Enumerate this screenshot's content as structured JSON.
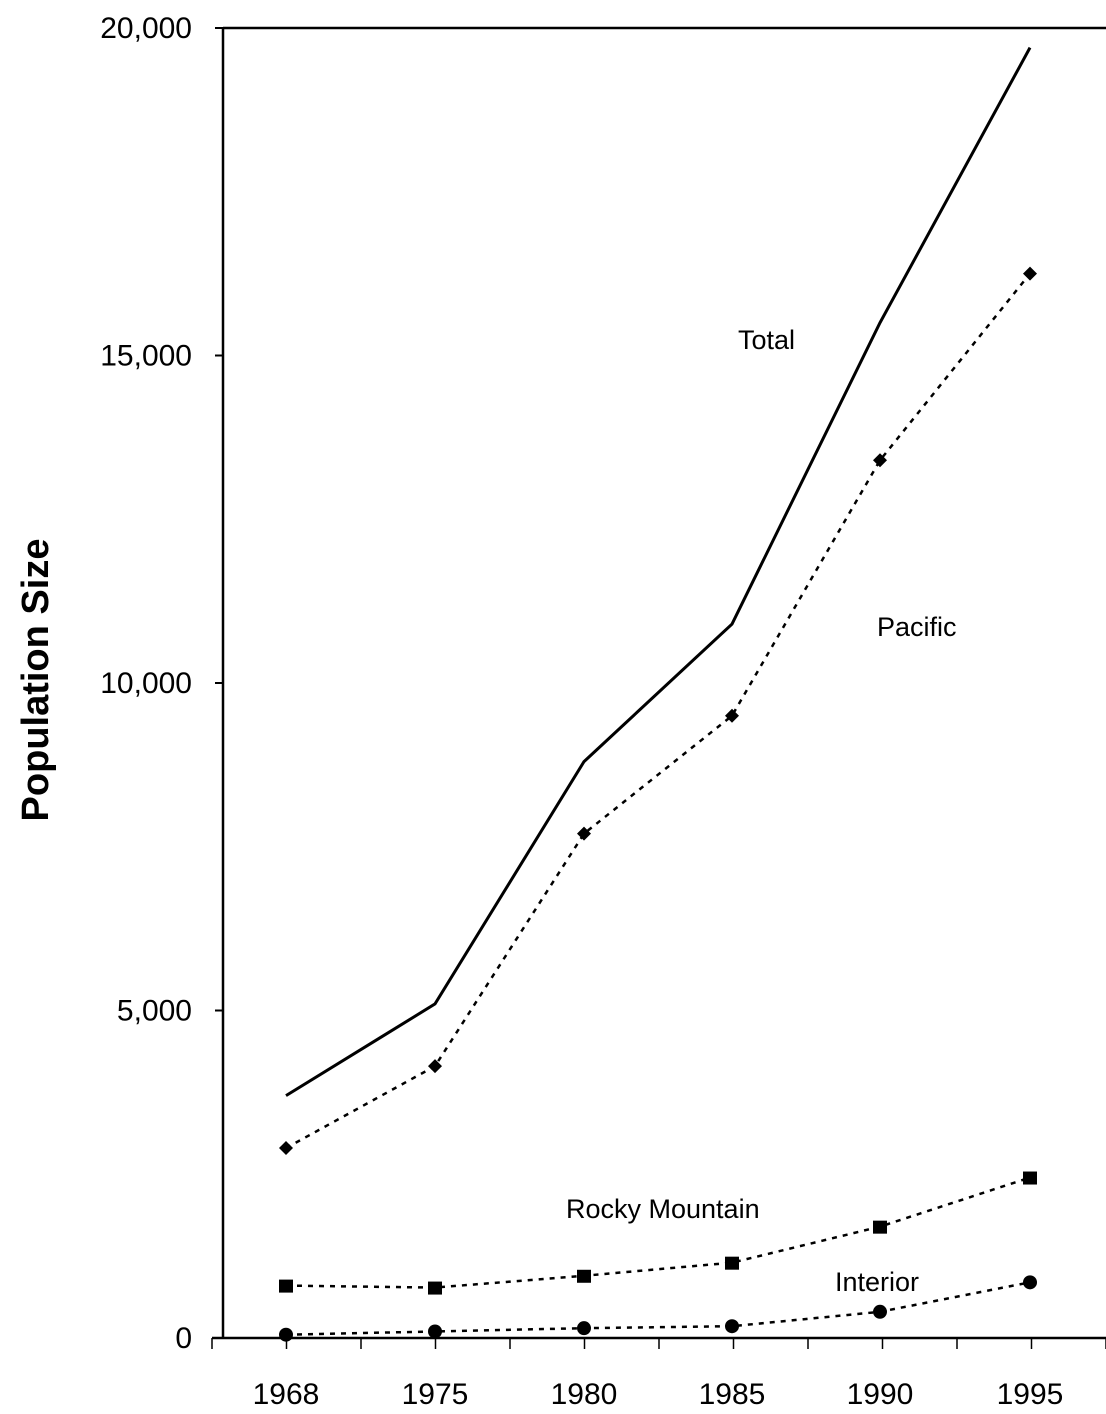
{
  "chart_data": {
    "type": "line",
    "title": "",
    "xlabel": "",
    "ylabel": "Population Size",
    "x": [
      "1968",
      "1975",
      "1980",
      "1985",
      "1990",
      "1995"
    ],
    "ylim": [
      0,
      20000
    ],
    "yticks": [
      "0",
      "5,000",
      "10,000",
      "15,000",
      "20,000"
    ],
    "ytick_values": [
      0,
      5000,
      10000,
      15000,
      20000
    ],
    "grid": false,
    "legend": "none",
    "series": [
      {
        "name": "Total",
        "values": [
          3700,
          5100,
          8800,
          10900,
          15500,
          19700
        ],
        "line": "solid",
        "marker": "none"
      },
      {
        "name": "Pacific",
        "values": [
          2900,
          4150,
          7700,
          9500,
          13400,
          16250
        ],
        "line": "dotted",
        "marker": "diamond"
      },
      {
        "name": "Rocky Mountain",
        "values": [
          800,
          770,
          950,
          1150,
          1700,
          2450
        ],
        "line": "dotted",
        "marker": "square"
      },
      {
        "name": "Interior",
        "values": [
          50,
          100,
          150,
          180,
          400,
          850
        ],
        "line": "dotted",
        "marker": "circle"
      }
    ]
  }
}
